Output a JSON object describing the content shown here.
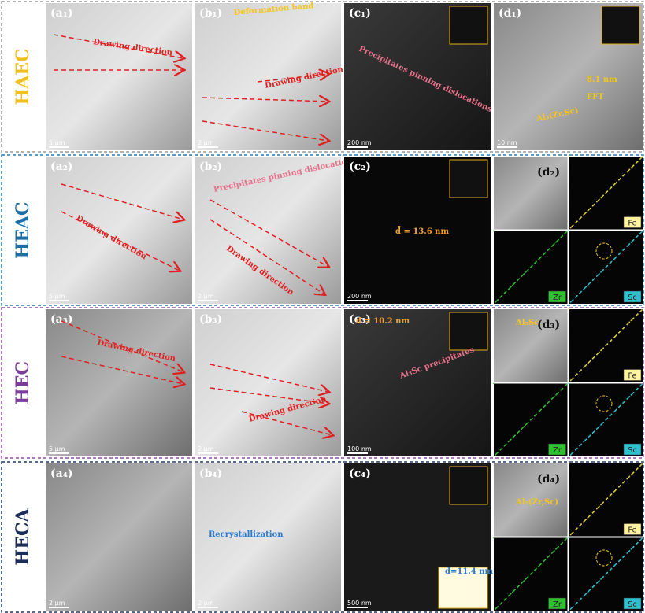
{
  "rows": [
    {
      "label": "HAEC",
      "panels": [
        {
          "label": "(a₁)",
          "annotations": [
            "Drawing direction"
          ],
          "scale_bar": "5 μm"
        },
        {
          "label": "(b₁)",
          "annotations": [
            "Deformation band",
            "Drawing direction"
          ],
          "scale_bar": "2 μm"
        },
        {
          "label": "(c₁)",
          "annotations": [
            "Precipitates pinning dislocations"
          ],
          "scale_bar": "200 nm"
        },
        {
          "label": "(d₁)",
          "annotations": [
            "8.1 nm",
            "FFT",
            "Al₃(Zr,Sc)"
          ],
          "scale_bar": "10 nm"
        }
      ]
    },
    {
      "label": "HEAC",
      "panels": [
        {
          "label": "(a₂)",
          "annotations": [
            "Drawing direction"
          ],
          "scale_bar": "5 μm"
        },
        {
          "label": "(b₂)",
          "annotations": [
            "Precipitates pinning dislocations",
            "Drawing direction"
          ],
          "scale_bar": "2 μm"
        },
        {
          "label": "(c₂)",
          "annotations": [
            "d̄ = 13.6 nm"
          ],
          "scale_bar": "200 nm"
        },
        {
          "label": "(d₂)",
          "annotations": [],
          "eds": [
            "Fe",
            "Zr",
            "Sc"
          ]
        }
      ]
    },
    {
      "label": "HEC",
      "panels": [
        {
          "label": "(a₃)",
          "annotations": [
            "Drawing direction"
          ],
          "scale_bar": "5 μm"
        },
        {
          "label": "(b₃)",
          "annotations": [
            "Drawing direction"
          ],
          "scale_bar": "2 μm"
        },
        {
          "label": "(c₃)",
          "annotations": [
            "d̄ = 10.2 nm",
            "Al₃Sc precipitates"
          ],
          "scale_bar": "100 nm"
        },
        {
          "label": "(d₃)",
          "annotations": [
            "Al₃Sc"
          ],
          "eds": [
            "Fe",
            "Zr",
            "Sc"
          ]
        }
      ]
    },
    {
      "label": "HECA",
      "panels": [
        {
          "label": "(a₄)",
          "annotations": [],
          "scale_bar": "2 μm"
        },
        {
          "label": "(b₄)",
          "annotations": [
            "Recrystallization"
          ],
          "scale_bar": "2 μm"
        },
        {
          "label": "(c₄)",
          "annotations": [
            "d=11.4 nm"
          ],
          "scale_bar": "500 nm"
        },
        {
          "label": "(d₄)",
          "annotations": [
            "Al₃(Zr,Sc)"
          ],
          "eds": [
            "Fe",
            "Zr",
            "Sc"
          ]
        }
      ]
    }
  ]
}
